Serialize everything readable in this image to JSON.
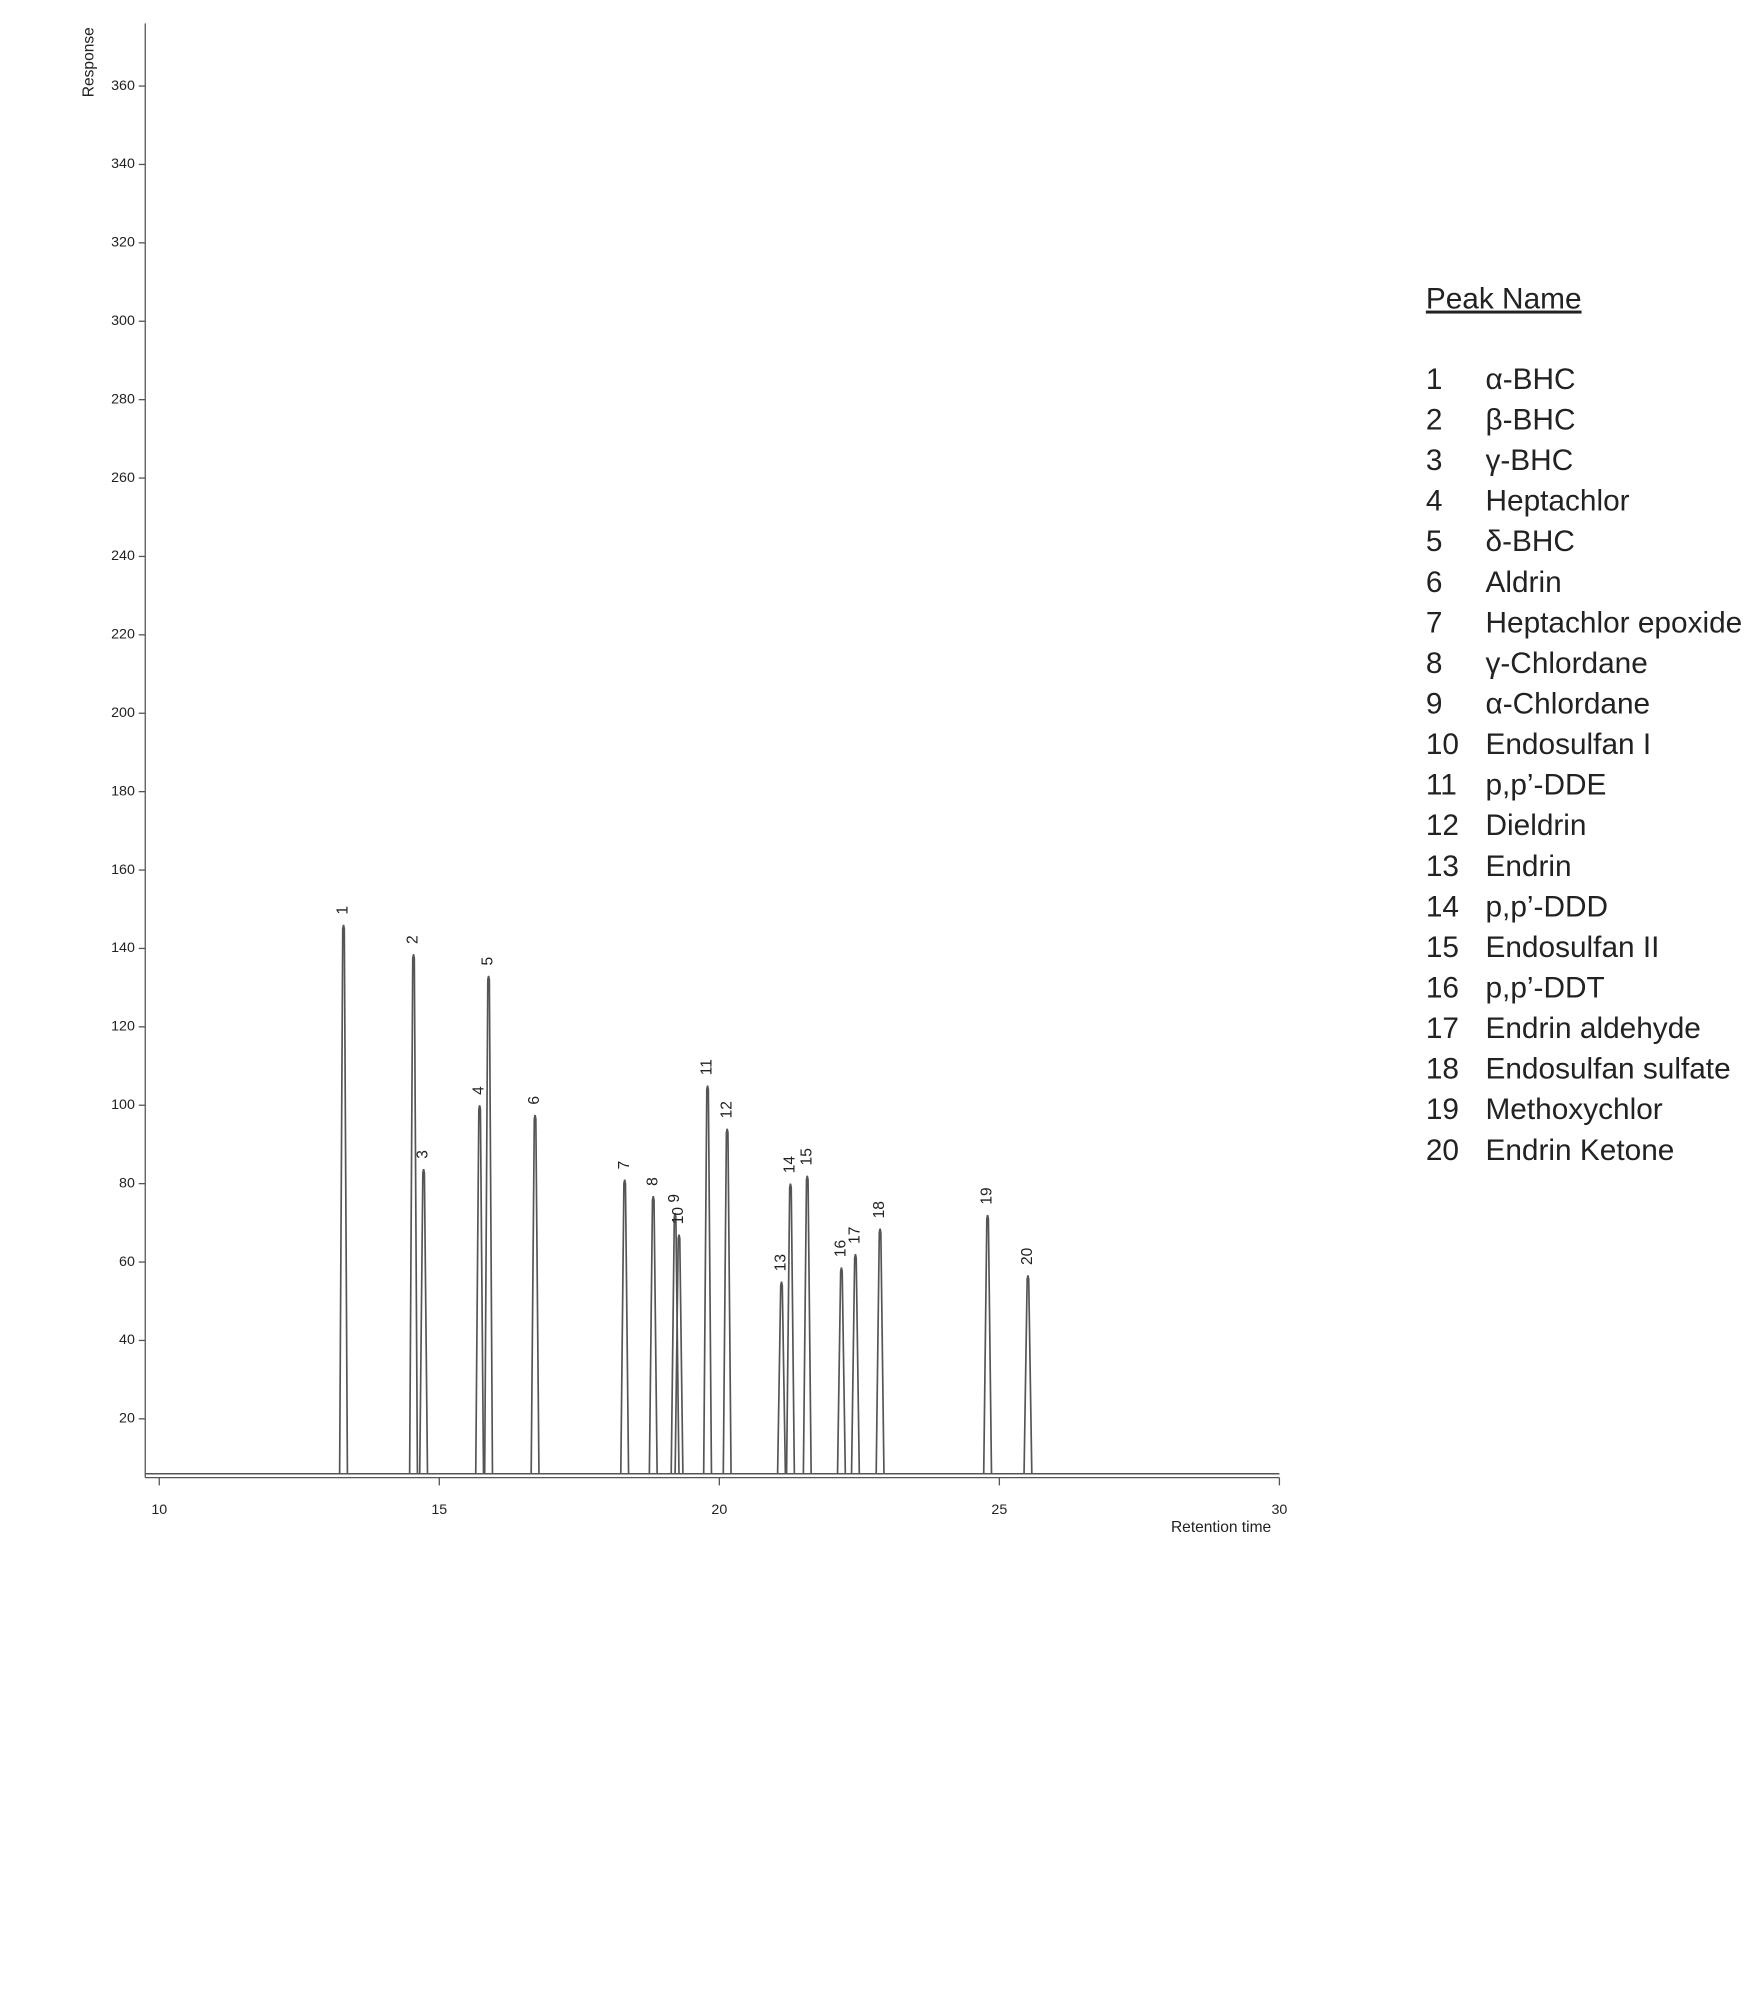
{
  "chart_data": {
    "type": "chromatogram",
    "x_label": "Retention time",
    "y_label": "Response",
    "xlim": [
      9.75,
      30
    ],
    "xticks": [
      10,
      15,
      20,
      25,
      30
    ],
    "ylim": [
      5,
      376
    ],
    "yticks": [
      20,
      40,
      60,
      80,
      100,
      120,
      140,
      160,
      180,
      200,
      220,
      240,
      260,
      280,
      300,
      320,
      340,
      360
    ],
    "baseline": 6,
    "color": "#555555",
    "peaks": {
      "labels": [
        "1",
        "2",
        "3",
        "4",
        "5",
        "6",
        "7",
        "8",
        "9",
        "10",
        "11",
        "12",
        "13",
        "14",
        "15",
        "16",
        "17",
        "18",
        "19",
        "20"
      ],
      "x": [
        13.29,
        14.54,
        14.72,
        15.72,
        15.88,
        16.71,
        18.31,
        18.82,
        19.21,
        19.28,
        19.79,
        20.14,
        21.11,
        21.27,
        21.57,
        22.18,
        22.43,
        22.87,
        24.79,
        25.51
      ],
      "values": [
        146,
        138.5,
        83.7,
        100,
        133,
        97.5,
        81,
        76.8,
        72.5,
        67,
        105,
        94,
        55,
        80,
        82,
        58.6,
        62,
        68.5,
        72,
        56.6
      ]
    },
    "legend": {
      "title": "Peak Name",
      "entries": [
        {
          "number": "1",
          "name": "α-BHC"
        },
        {
          "number": "2",
          "name": "β-BHC"
        },
        {
          "number": "3",
          "name": "γ-BHC"
        },
        {
          "number": "4",
          "name": "Heptachlor"
        },
        {
          "number": "5",
          "name": "δ-BHC"
        },
        {
          "number": "6",
          "name": "Aldrin"
        },
        {
          "number": "7",
          "name": "Heptachlor epoxide"
        },
        {
          "number": "8",
          "name": "γ-Chlordane"
        },
        {
          "number": "9",
          "name": "α-Chlordane"
        },
        {
          "number": "10",
          "name": "Endosulfan I"
        },
        {
          "number": "11",
          "name": "p,p’-DDE"
        },
        {
          "number": "12",
          "name": "Dieldrin"
        },
        {
          "number": "13",
          "name": "Endrin"
        },
        {
          "number": "14",
          "name": "p,p’-DDD"
        },
        {
          "number": "15",
          "name": "Endosulfan II"
        },
        {
          "number": "16",
          "name": "p,p’-DDT"
        },
        {
          "number": "17",
          "name": "Endrin aldehyde"
        },
        {
          "number": "18",
          "name": "Endosulfan sulfate"
        },
        {
          "number": "19",
          "name": "Methoxychlor"
        },
        {
          "number": "20",
          "name": "Endrin Ketone"
        }
      ]
    }
  }
}
